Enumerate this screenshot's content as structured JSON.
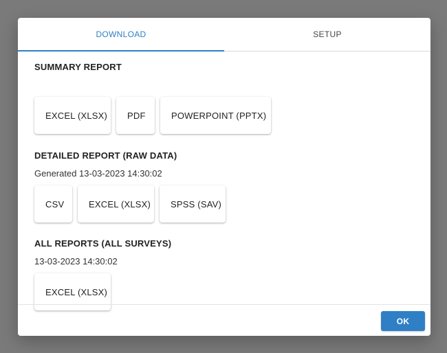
{
  "tabs": [
    {
      "label": "DOWNLOAD",
      "active": true
    },
    {
      "label": "SETUP",
      "active": false
    }
  ],
  "summary": {
    "title": "SUMMARY REPORT",
    "buttons": [
      "EXCEL (XLSX)",
      "PDF",
      "POWERPOINT (PPTX)"
    ]
  },
  "detailed": {
    "title": "DETAILED REPORT (RAW DATA)",
    "generated": "Generated 13-03-2023 14:30:02",
    "buttons": [
      "CSV",
      "EXCEL (XLSX)",
      "SPSS (SAV)"
    ]
  },
  "all_reports": {
    "title": "ALL REPORTS (ALL SURVEYS)",
    "timestamp": "13-03-2023 14:30:02",
    "buttons": [
      "EXCEL (XLSX)"
    ]
  },
  "footer": {
    "ok_label": "OK"
  },
  "colors": {
    "accent": "#2f7fc6",
    "backdrop": "#7a7a7a"
  }
}
